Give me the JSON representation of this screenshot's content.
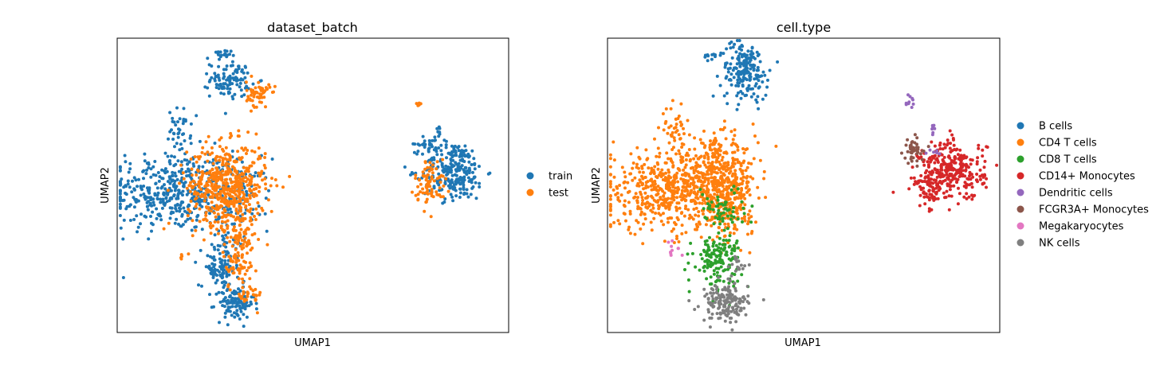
{
  "colors": {
    "train": "#1f77b4",
    "test": "#ff7f0e",
    "B cells": "#1f77b4",
    "CD4 T cells": "#ff7f0e",
    "CD8 T cells": "#2ca02c",
    "CD14+ Monocytes": "#d62728",
    "Dendritic cells": "#9467bd",
    "FCGR3A+ Monocytes": "#8c564b",
    "Megakaryocytes": "#e377c2",
    "NK cells": "#7f7f7f"
  },
  "chart_data": [
    {
      "type": "scatter",
      "title": "dataset_batch",
      "xlabel": "UMAP1",
      "ylabel": "UMAP2",
      "xlim": [
        0,
        100
      ],
      "ylim": [
        0,
        100
      ],
      "grid": false,
      "legend_position": "right",
      "series": [
        {
          "name": "train",
          "clusters": [
            {
              "cx": 14,
              "cy": 48,
              "sx": 8,
              "sy": 7,
              "n": 420
            },
            {
              "cx": 31,
              "cy": 47,
              "sx": 4,
              "sy": 6,
              "n": 110
            },
            {
              "cx": 16,
              "cy": 69,
              "sx": 1.4,
              "sy": 3.5,
              "n": 35
            },
            {
              "cx": 29,
              "cy": 86,
              "sx": 2.6,
              "sy": 3,
              "n": 100
            },
            {
              "cx": 26,
              "cy": 94,
              "sx": 1.5,
              "sy": 1,
              "n": 20
            },
            {
              "cx": 26,
              "cy": 21,
              "sx": 2.5,
              "sy": 2.5,
              "n": 70
            },
            {
              "cx": 30,
              "cy": 10,
              "sx": 2.5,
              "sy": 3,
              "n": 110
            },
            {
              "cx": 28,
              "cy": 30,
              "sx": 2,
              "sy": 4,
              "n": 40
            },
            {
              "cx": 86,
              "cy": 55,
              "sx": 4,
              "sy": 5,
              "n": 260
            },
            {
              "cx": 79,
              "cy": 64,
              "sx": 1.5,
              "sy": 1.2,
              "n": 25
            },
            {
              "cx": 82,
              "cy": 69,
              "sx": 0.4,
              "sy": 1,
              "n": 8
            }
          ]
        },
        {
          "name": "test",
          "clusters": [
            {
              "cx": 28,
              "cy": 50,
              "sx": 5,
              "sy": 7,
              "n": 520
            },
            {
              "cx": 31,
              "cy": 36,
              "sx": 2,
              "sy": 5,
              "n": 70
            },
            {
              "cx": 31,
              "cy": 24,
              "sx": 2,
              "sy": 5,
              "n": 70
            },
            {
              "cx": 34,
              "cy": 12,
              "sx": 1.4,
              "sy": 2,
              "n": 25
            },
            {
              "cx": 36,
              "cy": 81,
              "sx": 1.5,
              "sy": 2.2,
              "n": 60
            },
            {
              "cx": 80,
              "cy": 51,
              "sx": 2,
              "sy": 4,
              "n": 80
            },
            {
              "cx": 77,
              "cy": 78,
              "sx": 0.4,
              "sy": 0.8,
              "n": 6
            },
            {
              "cx": 17,
              "cy": 26,
              "sx": 0.5,
              "sy": 0.6,
              "n": 5
            }
          ]
        }
      ]
    },
    {
      "type": "scatter",
      "title": "cell.type",
      "xlabel": "UMAP1",
      "ylabel": "UMAP2",
      "xlim": [
        0,
        100
      ],
      "ylim": [
        0,
        100
      ],
      "grid": false,
      "legend_position": "right",
      "series": [
        {
          "name": "B cells",
          "clusters": [
            {
              "cx": 35,
              "cy": 89,
              "sx": 3,
              "sy": 5,
              "n": 190
            },
            {
              "cx": 27,
              "cy": 94,
              "sx": 1.2,
              "sy": 0.8,
              "n": 12
            }
          ]
        },
        {
          "name": "CD4 T cells",
          "clusters": [
            {
              "cx": 14,
              "cy": 48,
              "sx": 8,
              "sy": 7,
              "n": 430
            },
            {
              "cx": 28,
              "cy": 51,
              "sx": 5,
              "sy": 7,
              "n": 520
            },
            {
              "cx": 17,
              "cy": 69,
              "sx": 1.5,
              "sy": 3.5,
              "n": 40
            },
            {
              "cx": 32,
              "cy": 39,
              "sx": 2.5,
              "sy": 4,
              "n": 60
            }
          ]
        },
        {
          "name": "CD8 T cells",
          "clusters": [
            {
              "cx": 28,
              "cy": 25,
              "sx": 3,
              "sy": 4.5,
              "n": 150
            },
            {
              "cx": 29,
              "cy": 42,
              "sx": 3,
              "sy": 4,
              "n": 60
            }
          ]
        },
        {
          "name": "CD14+ Monocytes",
          "clusters": [
            {
              "cx": 88,
              "cy": 55,
              "sx": 4.2,
              "sy": 5,
              "n": 300
            },
            {
              "cx": 82,
              "cy": 49,
              "sx": 1.8,
              "sy": 3,
              "n": 60
            }
          ]
        },
        {
          "name": "Dendritic cells",
          "clusters": [
            {
              "cx": 77,
              "cy": 78,
              "sx": 0.6,
              "sy": 1,
              "n": 10
            },
            {
              "cx": 83,
              "cy": 69,
              "sx": 0.4,
              "sy": 1,
              "n": 8
            },
            {
              "cx": 83,
              "cy": 61,
              "sx": 0.8,
              "sy": 1,
              "n": 6
            }
          ]
        },
        {
          "name": "FCGR3A+ Monocytes",
          "clusters": [
            {
              "cx": 78,
              "cy": 62,
              "sx": 1.3,
              "sy": 2.2,
              "n": 40
            }
          ]
        },
        {
          "name": "Megakaryocytes",
          "clusters": [
            {
              "cx": 17,
              "cy": 28,
              "sx": 0.8,
              "sy": 1.3,
              "n": 10
            }
          ]
        },
        {
          "name": "NK cells",
          "clusters": [
            {
              "cx": 30,
              "cy": 10,
              "sx": 3,
              "sy": 3.2,
              "n": 160
            },
            {
              "cx": 33,
              "cy": 22,
              "sx": 1.3,
              "sy": 2,
              "n": 20
            }
          ]
        }
      ]
    }
  ]
}
